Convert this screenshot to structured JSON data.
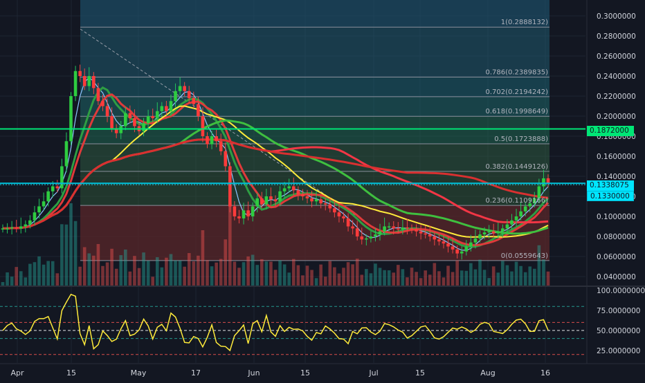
{
  "colors": {
    "background": "#131722",
    "grid": "#1e2433",
    "axis_text": "#d1d4dc",
    "candle_up": "#26a69a",
    "candle_down": "#ef5350",
    "fib_line": "#787b86",
    "fib_label": "#b2b5be",
    "green_level": "#00e676",
    "cyan_level": "#00bcd4",
    "cyan_tag": "#00e5ff",
    "ma_yellow": "#ffeb3b",
    "ma_red": "#f23645",
    "ma_green": "#4caf50",
    "rsi_line": "#ffeb3b"
  },
  "price_axis": {
    "ticks": [
      "0.3000000",
      "0.2800000",
      "0.2600000",
      "0.2400000",
      "0.2200000",
      "0.2000000",
      "0.1800000",
      "0.1600000",
      "0.1400000",
      "0.1200000",
      "0.1000000",
      "0.0800000",
      "0.0600000",
      "0.0400000"
    ],
    "tag_green": "0.1872000",
    "tag_current": "0.1338075",
    "tag_cyan": "0.1330000"
  },
  "rsi_axis": {
    "ticks": [
      "100.0000000",
      "75.0000000",
      "50.0000000",
      "25.0000000"
    ]
  },
  "time_axis": {
    "labels": [
      "Apr",
      "15",
      "May",
      "17",
      "Jun",
      "15",
      "Jul",
      "15",
      "Aug",
      "16"
    ]
  },
  "fib_levels": [
    {
      "label": "1(0.2888132)",
      "price": 0.2888132
    },
    {
      "label": "0.786(0.2389835)",
      "price": 0.2389835
    },
    {
      "label": "0.702(0.2194242)",
      "price": 0.2194242
    },
    {
      "label": "0.618(0.1998649)",
      "price": 0.1998649
    },
    {
      "label": "0.5(0.1723888)",
      "price": 0.1723888
    },
    {
      "label": "0.382(0.1449126)",
      "price": 0.1449126
    },
    {
      "label": "0.236(0.1109166)",
      "price": 0.1109166
    },
    {
      "label": "0(0.0559643)",
      "price": 0.0559643
    }
  ],
  "horizontal_levels": {
    "green": 0.1872,
    "cyan": 0.133
  }
}
